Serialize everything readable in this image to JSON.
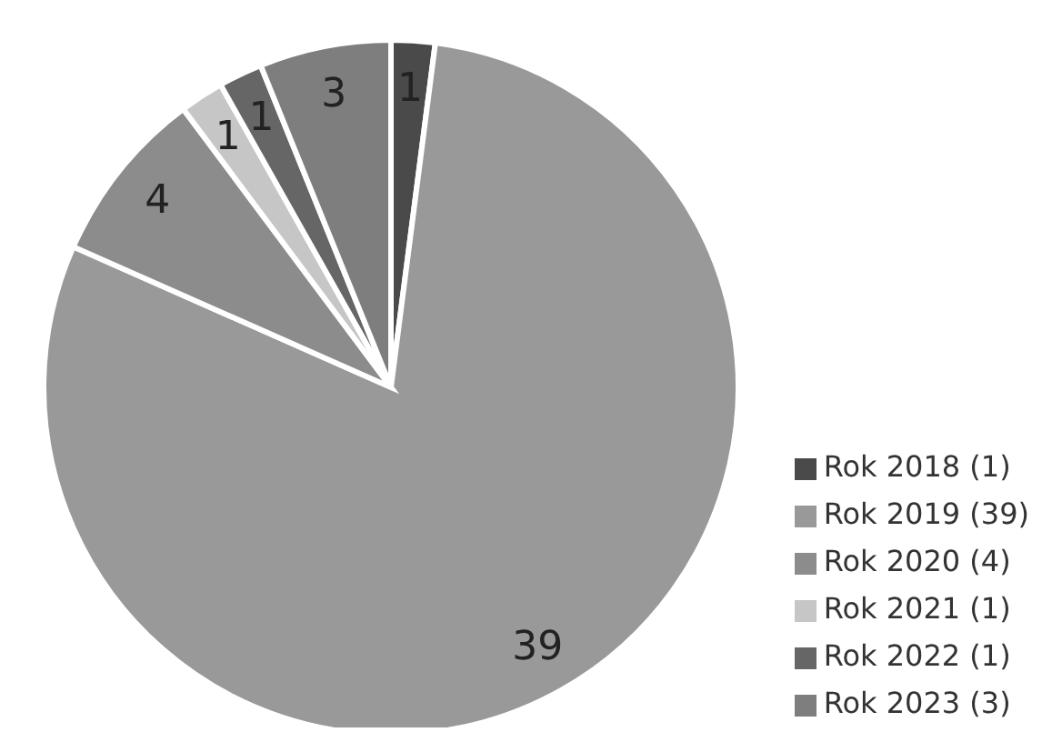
{
  "chart_data": {
    "type": "pie",
    "categories": [
      "Rok 2018 (1)",
      "Rok 2019 (39)",
      "Rok 2020 (4)",
      "Rok 2021 (1)",
      "Rok 2022 (1)",
      "Rok 2023 (3)"
    ],
    "values": [
      1,
      39,
      4,
      1,
      1,
      3
    ],
    "colors": [
      "#4a4a4a",
      "#999999",
      "#8c8c8c",
      "#c6c6c6",
      "#666666",
      "#7e7e7e"
    ],
    "data_labels": true,
    "legend": "bottom right"
  }
}
